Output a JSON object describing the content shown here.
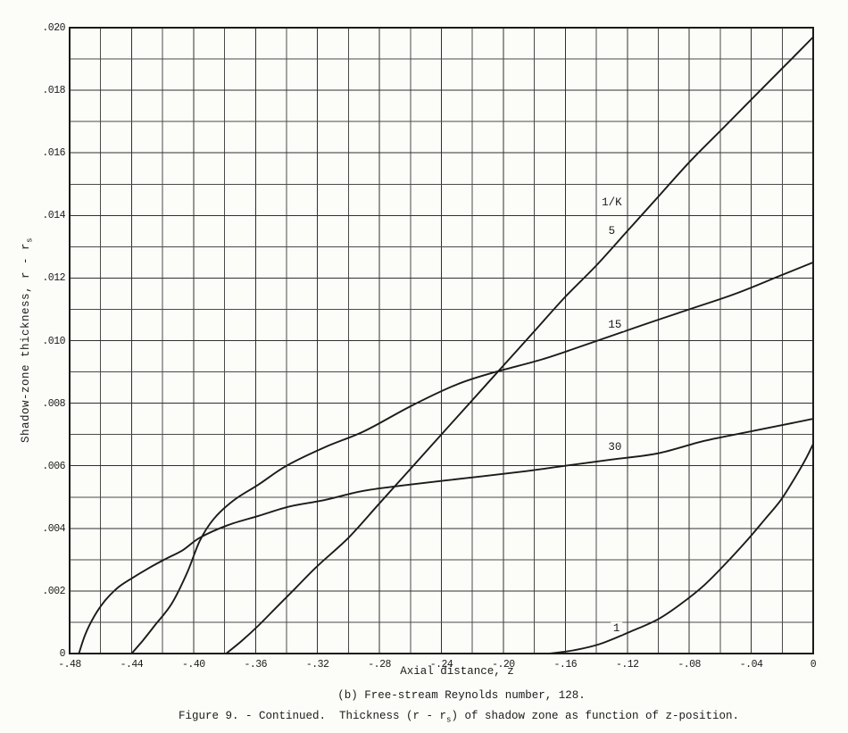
{
  "captions": {
    "sub": "(b) Free-stream Reynolds number, 128.",
    "figure_pre": "Figure 9. - Continued.  Thickness (r - r",
    "figure_sub": "s",
    "figure_post": ") of shadow zone as function of z-position."
  },
  "chart_data": {
    "type": "line",
    "title": "",
    "xlabel": "Axial distance, z",
    "ylabel_main": "Shadow-zone thickness, r - r",
    "ylabel_sub": "s",
    "xlim": [
      -0.48,
      0
    ],
    "ylim": [
      0,
      0.02
    ],
    "x_grid_step": 0.02,
    "y_grid_step": 0.001,
    "grid": true,
    "legend_position": "inline-curve-labels",
    "colors": {
      "ink": "#1b1b1b",
      "grid_minor": "#4a4a4a",
      "grid_major": "#303030",
      "paper": "#fcfcf8"
    },
    "x_ticks": [
      {
        "v": -0.48,
        "label": "-.48"
      },
      {
        "v": -0.44,
        "label": "-.44"
      },
      {
        "v": -0.4,
        "label": "-.40"
      },
      {
        "v": -0.36,
        "label": "-.36"
      },
      {
        "v": -0.32,
        "label": "-.32"
      },
      {
        "v": -0.28,
        "label": "-.28"
      },
      {
        "v": -0.24,
        "label": "-.24"
      },
      {
        "v": -0.2,
        "label": "-.20"
      },
      {
        "v": -0.16,
        "label": "-.16"
      },
      {
        "v": -0.12,
        "label": "-.12"
      },
      {
        "v": -0.08,
        "label": "-.08"
      },
      {
        "v": -0.04,
        "label": "-.04"
      },
      {
        "v": 0,
        "label": "0"
      }
    ],
    "y_ticks": [
      {
        "v": 0,
        "label": "0"
      },
      {
        "v": 0.002,
        "label": ".002"
      },
      {
        "v": 0.004,
        "label": ".004"
      },
      {
        "v": 0.006,
        "label": ".006"
      },
      {
        "v": 0.008,
        "label": ".008"
      },
      {
        "v": 0.01,
        "label": ".010"
      },
      {
        "v": 0.012,
        "label": ".012"
      },
      {
        "v": 0.014,
        "label": ".014"
      },
      {
        "v": 0.016,
        "label": ".016"
      },
      {
        "v": 0.018,
        "label": ".018"
      },
      {
        "v": 0.02,
        "label": ".020"
      }
    ],
    "family_label": {
      "text": "1/K",
      "x": -0.13,
      "y": 0.0144
    },
    "series": [
      {
        "name": "1/K = 5",
        "label": "5",
        "label_pos": {
          "x": -0.13,
          "y": 0.0135
        },
        "points": [
          [
            -0.379,
            0
          ],
          [
            -0.369,
            0.0004
          ],
          [
            -0.358,
            0.0009
          ],
          [
            -0.346,
            0.0015
          ],
          [
            -0.334,
            0.0021
          ],
          [
            -0.32,
            0.0028
          ],
          [
            -0.3,
            0.0037
          ],
          [
            -0.28,
            0.0048
          ],
          [
            -0.26,
            0.0059
          ],
          [
            -0.24,
            0.007
          ],
          [
            -0.22,
            0.0081
          ],
          [
            -0.2,
            0.0092
          ],
          [
            -0.18,
            0.0103
          ],
          [
            -0.16,
            0.0114
          ],
          [
            -0.14,
            0.0124
          ],
          [
            -0.12,
            0.0135
          ],
          [
            -0.1,
            0.0146
          ],
          [
            -0.08,
            0.0157
          ],
          [
            -0.06,
            0.0167
          ],
          [
            -0.04,
            0.0177
          ],
          [
            -0.02,
            0.0187
          ],
          [
            0,
            0.0197
          ]
        ]
      },
      {
        "name": "1/K = 15",
        "label": "15",
        "label_pos": {
          "x": -0.128,
          "y": 0.0105
        },
        "points": [
          [
            -0.44,
            0
          ],
          [
            -0.433,
            0.0004
          ],
          [
            -0.425,
            0.0009
          ],
          [
            -0.414,
            0.0016
          ],
          [
            -0.404,
            0.0026
          ],
          [
            -0.396,
            0.0036
          ],
          [
            -0.387,
            0.0043
          ],
          [
            -0.374,
            0.0049
          ],
          [
            -0.358,
            0.0054
          ],
          [
            -0.34,
            0.006
          ],
          [
            -0.315,
            0.0066
          ],
          [
            -0.29,
            0.0071
          ],
          [
            -0.26,
            0.0079
          ],
          [
            -0.23,
            0.0086
          ],
          [
            -0.205,
            0.009
          ],
          [
            -0.175,
            0.0094
          ],
          [
            -0.145,
            0.0099
          ],
          [
            -0.11,
            0.0105
          ],
          [
            -0.08,
            0.011
          ],
          [
            -0.05,
            0.0115
          ],
          [
            -0.02,
            0.0121
          ],
          [
            0,
            0.0125
          ]
        ]
      },
      {
        "name": "1/K = 30",
        "label": "30",
        "label_pos": {
          "x": -0.128,
          "y": 0.0066
        },
        "points": [
          [
            -0.474,
            0
          ],
          [
            -0.47,
            0.0006
          ],
          [
            -0.464,
            0.0012
          ],
          [
            -0.457,
            0.0017
          ],
          [
            -0.449,
            0.0021
          ],
          [
            -0.44,
            0.0024
          ],
          [
            -0.43,
            0.0027
          ],
          [
            -0.419,
            0.003
          ],
          [
            -0.407,
            0.0033
          ],
          [
            -0.396,
            0.0037
          ],
          [
            -0.378,
            0.0041
          ],
          [
            -0.358,
            0.0044
          ],
          [
            -0.338,
            0.0047
          ],
          [
            -0.316,
            0.0049
          ],
          [
            -0.29,
            0.0052
          ],
          [
            -0.26,
            0.0054
          ],
          [
            -0.225,
            0.0056
          ],
          [
            -0.19,
            0.0058
          ],
          [
            -0.16,
            0.006
          ],
          [
            -0.13,
            0.0062
          ],
          [
            -0.1,
            0.0064
          ],
          [
            -0.07,
            0.0068
          ],
          [
            -0.04,
            0.0071
          ],
          [
            0,
            0.0075
          ]
        ]
      },
      {
        "name": "1/K = 1",
        "label": "1",
        "label_pos": {
          "x": -0.127,
          "y": 0.0008
        },
        "points": [
          [
            -0.17,
            0
          ],
          [
            -0.155,
            0.0001
          ],
          [
            -0.138,
            0.0003
          ],
          [
            -0.118,
            0.0007
          ],
          [
            -0.1,
            0.0011
          ],
          [
            -0.085,
            0.0016
          ],
          [
            -0.07,
            0.0022
          ],
          [
            -0.056,
            0.0029
          ],
          [
            -0.043,
            0.0036
          ],
          [
            -0.031,
            0.0043
          ],
          [
            -0.021,
            0.0049
          ],
          [
            -0.012,
            0.0056
          ],
          [
            -0.005,
            0.0062
          ],
          [
            0,
            0.0067
          ]
        ]
      }
    ]
  }
}
